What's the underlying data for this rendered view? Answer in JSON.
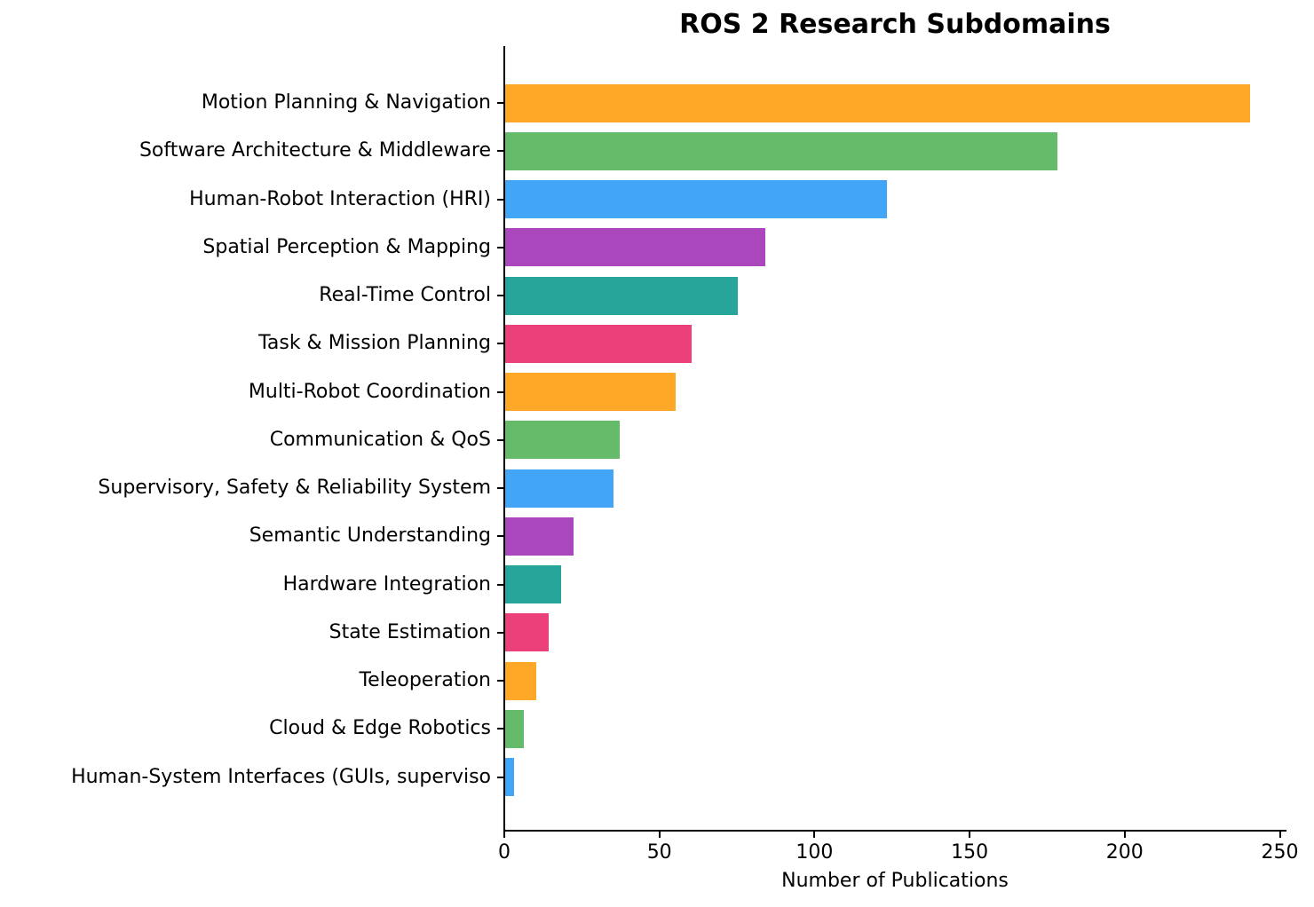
{
  "chart_data": {
    "type": "bar",
    "orientation": "horizontal",
    "title": "ROS 2 Research Subdomains",
    "xlabel": "Number of Publications",
    "ylabel": "",
    "xlim": [
      0,
      252
    ],
    "xticks": [
      0,
      50,
      100,
      150,
      200,
      250
    ],
    "grid": false,
    "legend": null,
    "categories": [
      "Motion Planning & Navigation",
      "Software Architecture & Middleware",
      "Human-Robot Interaction (HRI)",
      "Spatial Perception & Mapping",
      "Real-Time Control",
      "Task & Mission Planning",
      "Multi-Robot Coordination",
      "Communication & QoS",
      "Supervisory, Safety & Reliability System",
      "Semantic Understanding",
      "Hardware Integration",
      "State Estimation",
      "Teleoperation",
      "Cloud & Edge Robotics",
      "Human-System Interfaces (GUIs, superviso"
    ],
    "values": [
      240,
      178,
      123,
      84,
      75,
      60,
      55,
      37,
      35,
      22,
      18,
      14,
      10,
      6,
      3
    ],
    "colors": [
      "#FFA726",
      "#66BB6A",
      "#42A5F5",
      "#AB47BC",
      "#26A69A",
      "#EC407A",
      "#FFA726",
      "#66BB6A",
      "#42A5F5",
      "#AB47BC",
      "#26A69A",
      "#EC407A",
      "#FFA726",
      "#66BB6A",
      "#42A5F5"
    ]
  }
}
